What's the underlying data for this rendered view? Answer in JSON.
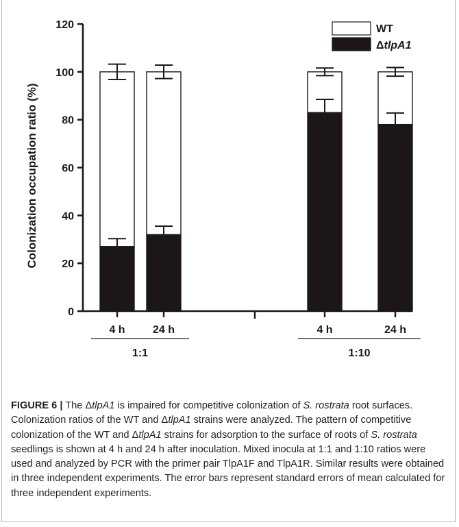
{
  "chart_data": {
    "type": "bar",
    "stacked": true,
    "ylabel": "Colonization occupation ratio (%)",
    "ylim": [
      0,
      120
    ],
    "yticks": [
      0,
      20,
      40,
      60,
      80,
      100,
      120
    ],
    "groups": [
      {
        "label": "1:1",
        "categories": [
          "4 h",
          "24 h"
        ]
      },
      {
        "label": "1:10",
        "categories": [
          "4 h",
          "24 h"
        ]
      }
    ],
    "categories": [
      "4 h",
      "24 h",
      "4 h",
      "24 h"
    ],
    "series": [
      {
        "name": "ΔtlpA1",
        "color": "#1c1716",
        "values": [
          27,
          32,
          83,
          78
        ],
        "errors": [
          3.3,
          3.5,
          5.5,
          4.8
        ]
      },
      {
        "name": "WT",
        "color": "#ffffff",
        "values": [
          73,
          68,
          17,
          22
        ],
        "errors": [
          3.2,
          2.8,
          1.6,
          1.8
        ]
      }
    ],
    "legend_position": "top-right",
    "grid": false
  },
  "legend": {
    "wt_label": "WT",
    "mutant_prefix": "Δ",
    "mutant_italic": "tlpA1"
  },
  "caption": {
    "label": "FIGURE 6 |",
    "t1": " The Δ",
    "i1": "tlpA1",
    "t2": " is impaired for competitive colonization of ",
    "i2": "S. rostrata",
    "t3": " root surfaces. Colonization ratios of the WT and Δ",
    "i3": "tlpA1",
    "t4": " strains were analyzed. The pattern of competitive colonization of the WT and Δ",
    "i4": "tlpA1",
    "t5": " strains for adsorption to the surface of roots of ",
    "i5": "S. rostrata",
    "t6": " seedlings is shown at 4 h and 24 h after inoculation. Mixed inocula at 1:1 and 1:10 ratios were used and analyzed by PCR with the primer pair TlpA1F and TlpA1R. Similar results were obtained in three independent experiments. The error bars represent standard errors of mean calculated for three independent experiments."
  }
}
